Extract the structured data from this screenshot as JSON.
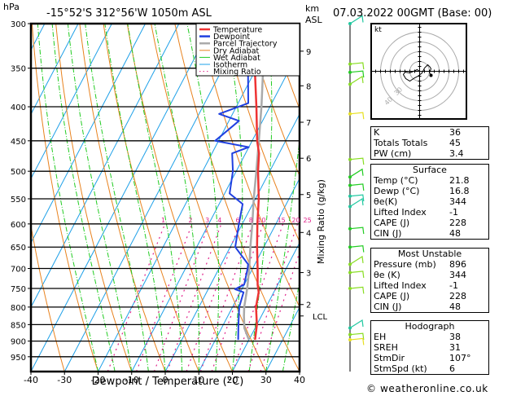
{
  "header": {
    "pressure_unit": "hPa",
    "location": "-15°52'S  312°56'W  1050m  ASL",
    "km_label": "km",
    "asl_label": "ASL",
    "datetime": "07.03.2022  00GMT  (Base: 00)"
  },
  "hodograph": {
    "unit_label": "kt",
    "ring_labels": [
      "40",
      "30"
    ]
  },
  "indices": {
    "basic": [
      {
        "label": "K",
        "value": "36"
      },
      {
        "label": "Totals Totals",
        "value": "45"
      },
      {
        "label": "PW (cm)",
        "value": "3.4"
      }
    ],
    "surface": {
      "title": "Surface",
      "rows": [
        {
          "label": "Temp (°C)",
          "value": "21.8"
        },
        {
          "label": "Dewp (°C)",
          "value": "16.8"
        },
        {
          "label": "θe(K)",
          "value": "344"
        },
        {
          "label": "Lifted Index",
          "value": "-1"
        },
        {
          "label": "CAPE (J)",
          "value": "228"
        },
        {
          "label": "CIN (J)",
          "value": "48"
        }
      ]
    },
    "most_unstable": {
      "title": "Most Unstable",
      "rows": [
        {
          "label": "Pressure (mb)",
          "value": "896"
        },
        {
          "label": "θe (K)",
          "value": "344"
        },
        {
          "label": "Lifted Index",
          "value": "-1"
        },
        {
          "label": "CAPE (J)",
          "value": "228"
        },
        {
          "label": "CIN (J)",
          "value": "48"
        }
      ]
    },
    "hodograph": {
      "title": "Hodograph",
      "rows": [
        {
          "label": "EH",
          "value": "38"
        },
        {
          "label": "SREH",
          "value": "31"
        },
        {
          "label": "StmDir",
          "value": "107°"
        },
        {
          "label": "StmSpd (kt)",
          "value": "6"
        }
      ]
    }
  },
  "copyright": "© weatheronline.co.uk",
  "chart_data": {
    "type": "line",
    "title": "-15°52'S  312°56'W  1050m  ASL",
    "xlabel": "Dewpoint / Temperature (°C)",
    "ylabel": "hPa",
    "right_axis_label": "Mixing Ratio (g/kg)",
    "xlim": [
      -40,
      40
    ],
    "ylim": [
      1000,
      300
    ],
    "x_ticks": [
      -40,
      -30,
      -20,
      -10,
      0,
      10,
      20,
      30,
      40
    ],
    "x_tick_labels": [
      "-40",
      "-30",
      "-20",
      "-10",
      "0",
      "10",
      "20",
      "30",
      "40"
    ],
    "pressure_levels": [
      300,
      350,
      400,
      450,
      500,
      550,
      600,
      650,
      700,
      750,
      800,
      850,
      900,
      950
    ],
    "pressure_labels": [
      "300",
      "350",
      "400",
      "450",
      "500",
      "550",
      "600",
      "650",
      "700",
      "750",
      "800",
      "850",
      "900",
      "950"
    ],
    "km_ticks": [
      {
        "label": "9",
        "p": 330
      },
      {
        "label": "8",
        "p": 372
      },
      {
        "label": "7",
        "p": 422
      },
      {
        "label": "6",
        "p": 478
      },
      {
        "label": "5",
        "p": 542
      },
      {
        "label": "4",
        "p": 618
      },
      {
        "label": "3",
        "p": 710
      },
      {
        "label": "2",
        "p": 793
      }
    ],
    "lcl": {
      "label": "LCL",
      "p": 825
    },
    "mixing_ratio_labels": [
      "1",
      "2",
      "3",
      "4",
      "6",
      "8",
      "10",
      "15",
      "20",
      "25"
    ],
    "mixing_ratios": [
      1,
      2,
      3,
      4,
      6,
      8,
      10,
      15,
      20,
      25
    ],
    "legend": {
      "position": "top-right",
      "entries": [
        {
          "name": "Temperature",
          "color": "#ee3333"
        },
        {
          "name": "Dewpoint",
          "color": "#2040e0"
        },
        {
          "name": "Parcel Trajectory",
          "color": "#aaaaaa"
        },
        {
          "name": "Dry Adiabat",
          "color": "#e8821e"
        },
        {
          "name": "Wet Adiabat",
          "color": "#22cc22"
        },
        {
          "name": "Isotherm",
          "color": "#1ea0e8"
        },
        {
          "name": "Mixing Ratio",
          "color": "#e0208a"
        }
      ]
    },
    "series": [
      {
        "name": "Temperature",
        "points": [
          [
            896,
            21.8
          ],
          [
            850,
            20
          ],
          [
            800,
            17
          ],
          [
            760,
            15.5
          ],
          [
            740,
            14
          ],
          [
            700,
            11.5
          ],
          [
            650,
            8
          ],
          [
            600,
            4.5
          ],
          [
            550,
            1
          ],
          [
            500,
            -3.5
          ],
          [
            470,
            -6
          ],
          [
            450,
            -8.5
          ],
          [
            400,
            -14
          ],
          [
            350,
            -20.5
          ],
          [
            320,
            -25
          ],
          [
            300,
            -29
          ]
        ]
      },
      {
        "name": "Dewpoint",
        "points": [
          [
            896,
            16.8
          ],
          [
            850,
            14.5
          ],
          [
            800,
            12
          ],
          [
            760,
            11
          ],
          [
            752,
            8
          ],
          [
            740,
            10
          ],
          [
            700,
            8.5
          ],
          [
            690,
            8
          ],
          [
            650,
            1.5
          ],
          [
            600,
            -1
          ],
          [
            560,
            -3
          ],
          [
            540,
            -8.5
          ],
          [
            500,
            -11
          ],
          [
            470,
            -14
          ],
          [
            460,
            -10
          ],
          [
            450,
            -21
          ],
          [
            420,
            -17
          ],
          [
            410,
            -24
          ],
          [
            395,
            -17
          ],
          [
            350,
            -22.5
          ],
          [
            320,
            -27.5
          ],
          [
            300,
            -33
          ]
        ]
      },
      {
        "name": "Parcel Trajectory",
        "points": [
          [
            896,
            20
          ],
          [
            860,
            16.8
          ],
          [
            825,
            14.8
          ],
          [
            800,
            13.5
          ],
          [
            750,
            11.5
          ],
          [
            700,
            9
          ],
          [
            650,
            6
          ],
          [
            600,
            3
          ],
          [
            550,
            -0.5
          ],
          [
            500,
            -4
          ],
          [
            450,
            -8
          ],
          [
            400,
            -12.5
          ],
          [
            350,
            -18
          ],
          [
            300,
            -24.5
          ]
        ]
      }
    ],
    "wind_barbs": [
      {
        "p": 300,
        "color": "#20c8a0"
      },
      {
        "p": 345,
        "color": "#88dd22"
      },
      {
        "p": 355,
        "color": "#22cc22"
      },
      {
        "p": 370,
        "color": "#88dd22"
      },
      {
        "p": 410,
        "color": "#e8e020"
      },
      {
        "p": 480,
        "color": "#88dd22"
      },
      {
        "p": 510,
        "color": "#22cc22"
      },
      {
        "p": 525,
        "color": "#22cc22"
      },
      {
        "p": 545,
        "color": "#20c8a0"
      },
      {
        "p": 565,
        "color": "#20c8a0"
      },
      {
        "p": 610,
        "color": "#22cc22"
      },
      {
        "p": 650,
        "color": "#22cc22"
      },
      {
        "p": 690,
        "color": "#88dd22"
      },
      {
        "p": 710,
        "color": "#88dd22"
      },
      {
        "p": 750,
        "color": "#88dd22"
      },
      {
        "p": 860,
        "color": "#20c8a0"
      },
      {
        "p": 880,
        "color": "#88dd22"
      },
      {
        "p": 896,
        "color": "#e8e020"
      }
    ]
  }
}
